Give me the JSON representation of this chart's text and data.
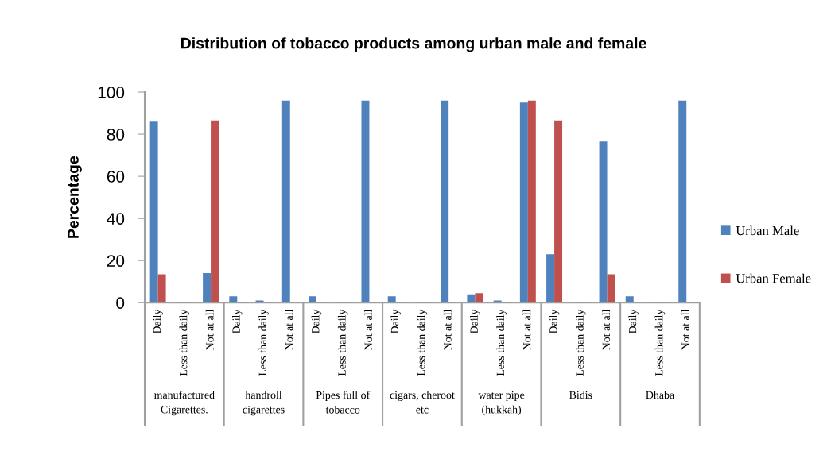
{
  "chart_data": {
    "type": "bar",
    "title": "Distribution of tobacco products among urban male and female",
    "ylabel": "Percentage",
    "categories": [
      "Daily",
      "Less than daily",
      "Not at all",
      "Daily",
      "Less than daily",
      "Not at all",
      "Daily",
      "Less than daily",
      "Not at all",
      "Daily",
      "Less than daily",
      "Not at all",
      "Daily",
      "Less than daily",
      "Not at all",
      "Daily",
      "Less than daily",
      "Not at all",
      "Daily",
      "Less than daily",
      "Not at all"
    ],
    "series": [
      {
        "name": "Urban Male",
        "color": "#4f81bd",
        "values": [
          86,
          0.5,
          14,
          3,
          1,
          96,
          3,
          0.5,
          96,
          3,
          0.5,
          96,
          4,
          1,
          95,
          23,
          0.5,
          76.5,
          3,
          0.5,
          96
        ]
      },
      {
        "name": "Urban Female",
        "color": "#c0504d",
        "values": [
          13.5,
          0.5,
          86.5,
          0.5,
          0.5,
          0.5,
          0.5,
          0.5,
          0.5,
          0.5,
          0.5,
          0.5,
          4.5,
          0.5,
          96,
          86.5,
          0.5,
          13.5,
          0.5,
          0.5,
          0.5
        ]
      }
    ],
    "annotations": [
      "manufactured\nCigarettes.",
      "handroll\ncigarettes",
      "Pipes full of\ntobacco",
      "cigars, cheroot\netc",
      "water pipe\n(hukkah)",
      "Bidis",
      "Dhaba"
    ],
    "ylim": [
      0,
      100
    ],
    "yticks": [
      0,
      20,
      40,
      60,
      80,
      100
    ],
    "legend": "right"
  }
}
